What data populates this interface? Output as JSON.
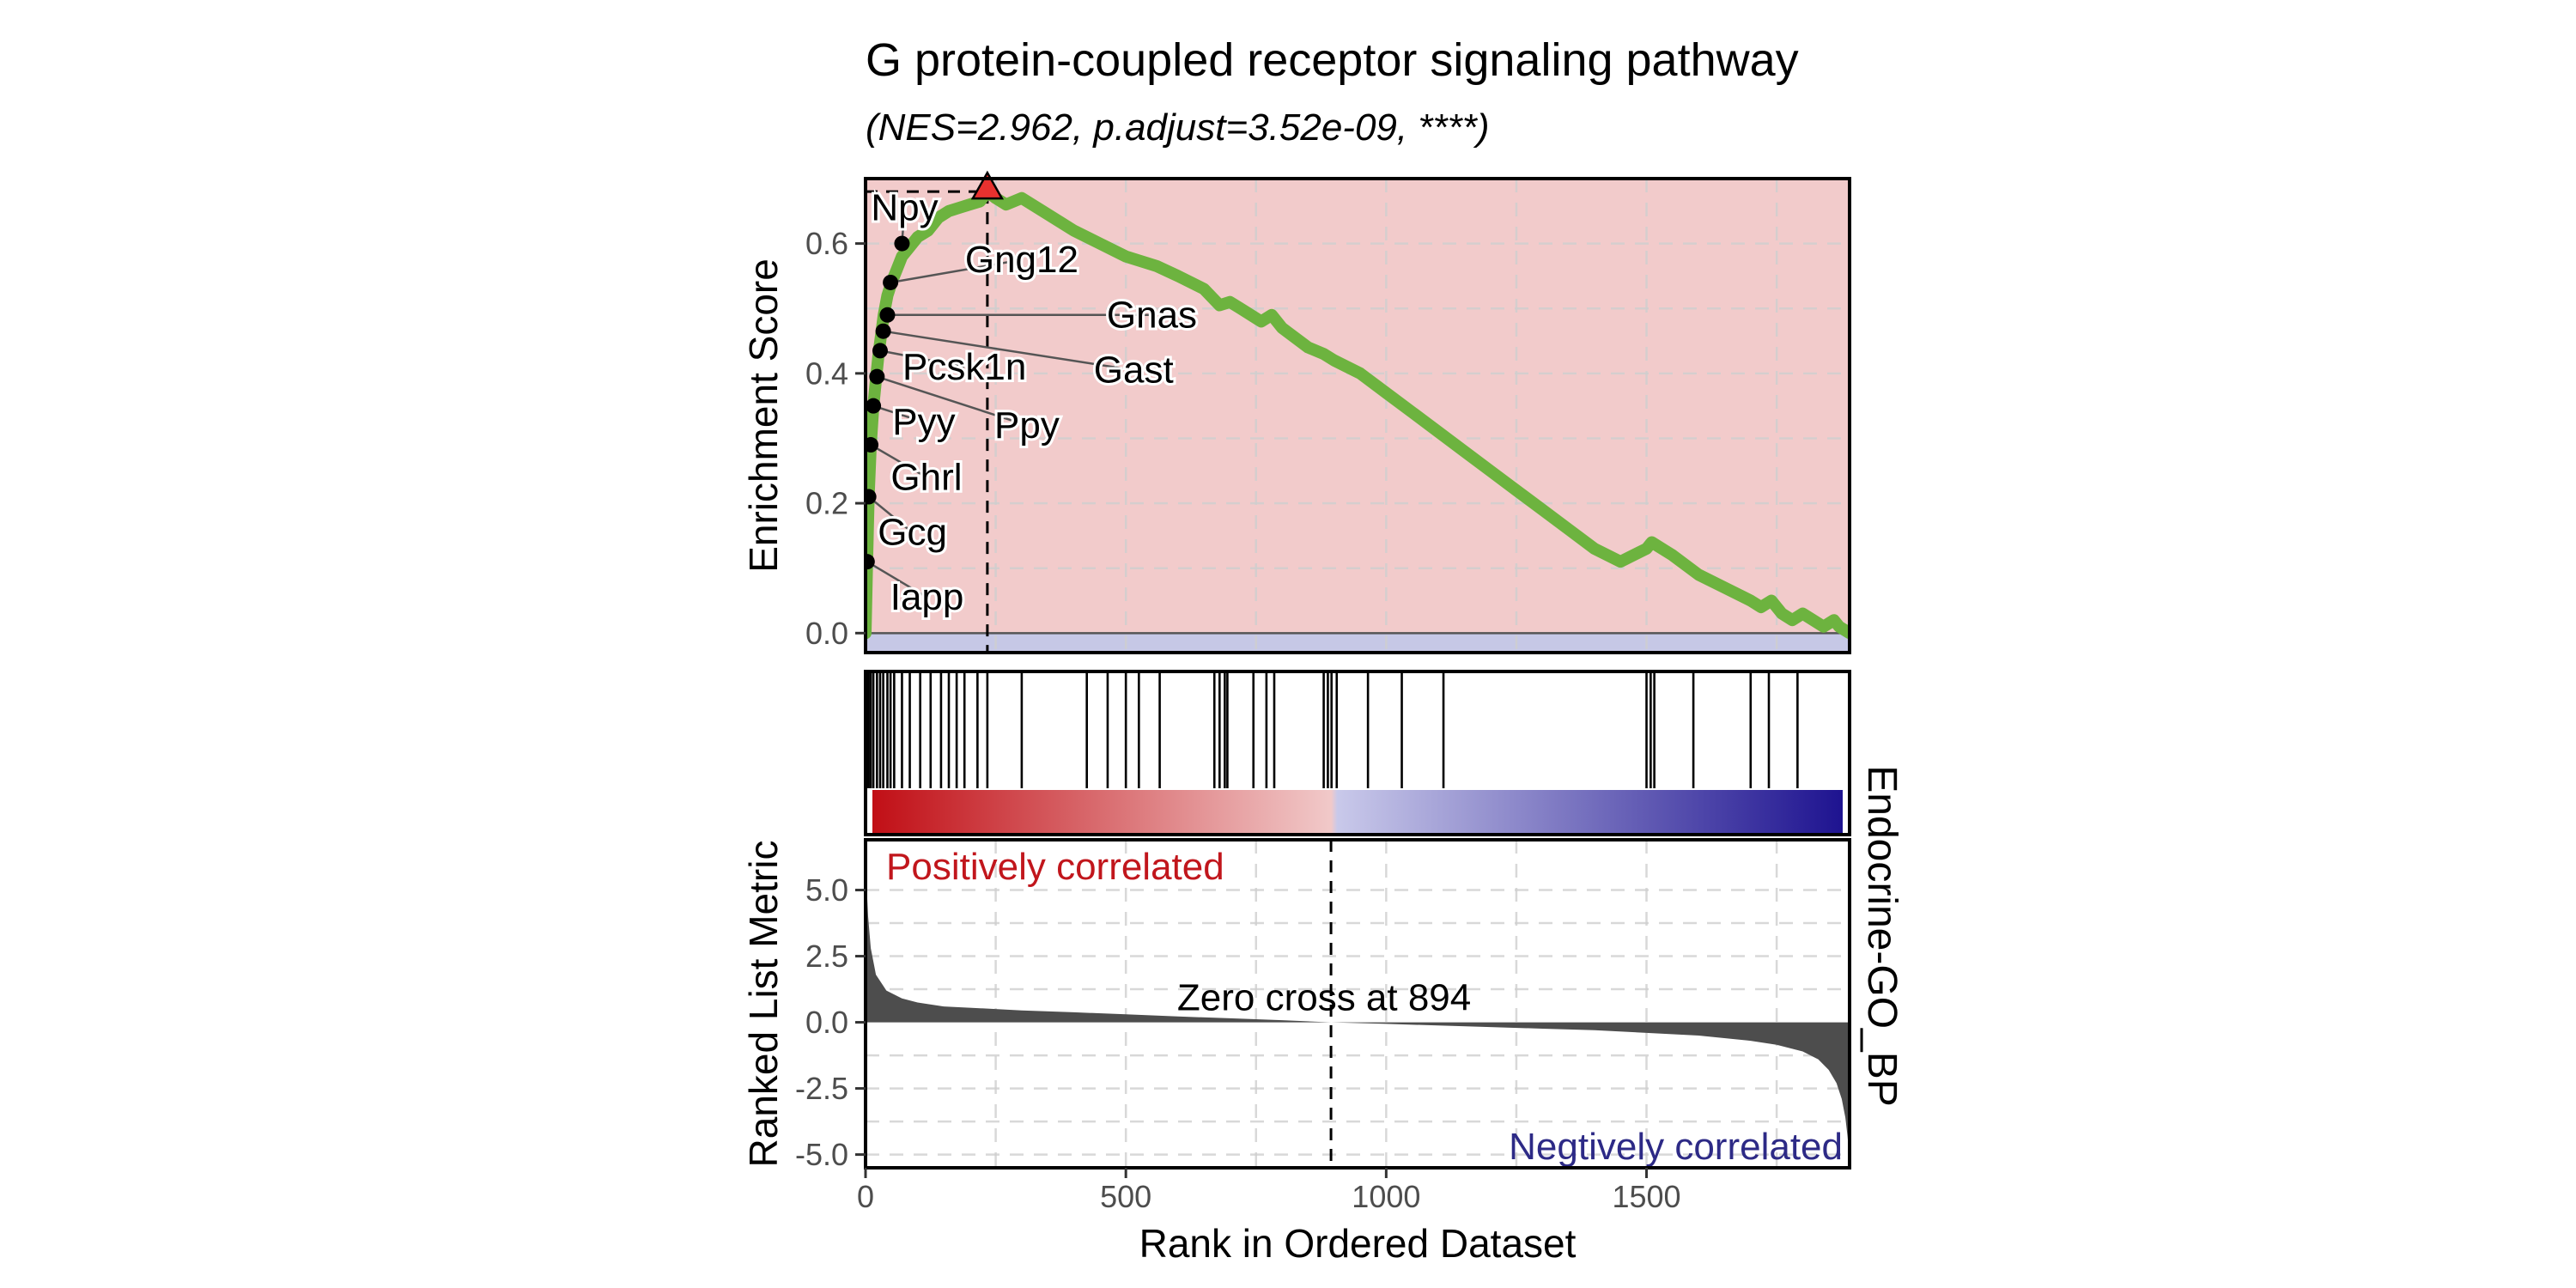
{
  "chart_data": {
    "type": "line",
    "title": "G protein-coupled receptor signaling pathway",
    "subtitle": "(NES=2.962, p.adjust=3.52e-09, ****)",
    "strip_label": "Endocrine-GO_BP",
    "xlabel": "Rank in Ordered Dataset",
    "xlim": [
      0,
      1890
    ],
    "x_ticks": [
      {
        "value": 0,
        "label": "0"
      },
      {
        "value": 500,
        "label": "500"
      },
      {
        "value": 1000,
        "label": "1000"
      },
      {
        "value": 1500,
        "label": "1500"
      }
    ],
    "enrichment": {
      "ylabel": "Enrichment Score",
      "ylim": [
        -0.03,
        0.7
      ],
      "y_ticks": [
        {
          "value": 0.0,
          "label": "0.0"
        },
        {
          "value": 0.2,
          "label": "0.2"
        },
        {
          "value": 0.4,
          "label": "0.4"
        },
        {
          "value": 0.6,
          "label": "0.6"
        }
      ],
      "positive_color": "#f2cbcb",
      "negative_color": "#c6c8e6",
      "line_color": "#6db33f",
      "series": {
        "name": "Running enrichment score",
        "x": [
          0,
          3,
          6,
          10,
          15,
          20,
          25,
          30,
          35,
          42,
          50,
          60,
          70,
          80,
          90,
          100,
          120,
          140,
          160,
          180,
          200,
          220,
          234,
          250,
          270,
          300,
          340,
          400,
          450,
          500,
          560,
          600,
          650,
          680,
          700,
          720,
          740,
          760,
          780,
          800,
          850,
          880,
          900,
          950,
          1000,
          1050,
          1100,
          1150,
          1200,
          1250,
          1300,
          1350,
          1400,
          1450,
          1500,
          1510,
          1550,
          1600,
          1650,
          1700,
          1720,
          1740,
          1760,
          1780,
          1800,
          1820,
          1840,
          1860,
          1870,
          1880,
          1890
        ],
        "values": [
          0.0,
          0.11,
          0.21,
          0.29,
          0.35,
          0.39,
          0.43,
          0.46,
          0.49,
          0.52,
          0.54,
          0.56,
          0.58,
          0.59,
          0.6,
          0.61,
          0.62,
          0.64,
          0.65,
          0.655,
          0.66,
          0.665,
          0.68,
          0.67,
          0.66,
          0.67,
          0.65,
          0.62,
          0.6,
          0.58,
          0.565,
          0.55,
          0.53,
          0.505,
          0.51,
          0.5,
          0.49,
          0.48,
          0.49,
          0.47,
          0.44,
          0.43,
          0.42,
          0.4,
          0.37,
          0.34,
          0.31,
          0.28,
          0.25,
          0.22,
          0.19,
          0.16,
          0.13,
          0.11,
          0.13,
          0.14,
          0.12,
          0.09,
          0.07,
          0.05,
          0.04,
          0.05,
          0.03,
          0.02,
          0.03,
          0.02,
          0.01,
          0.02,
          0.01,
          0.005,
          0.0
        ]
      },
      "peak": {
        "x": 234,
        "y": 0.68
      },
      "gene_points": [
        {
          "gene": "Iapp",
          "x": 3,
          "y": 0.11
        },
        {
          "gene": "Gcg",
          "x": 6,
          "y": 0.21
        },
        {
          "gene": "Ghrl",
          "x": 10,
          "y": 0.29
        },
        {
          "gene": "Pyy",
          "x": 15,
          "y": 0.35
        },
        {
          "gene": "Ppy",
          "x": 22,
          "y": 0.395
        },
        {
          "gene": "Pcsk1n",
          "x": 28,
          "y": 0.435
        },
        {
          "gene": "Gast",
          "x": 34,
          "y": 0.465
        },
        {
          "gene": "Gnas",
          "x": 42,
          "y": 0.49
        },
        {
          "gene": "Gng12",
          "x": 48,
          "y": 0.54
        },
        {
          "gene": "Npy",
          "x": 70,
          "y": 0.6
        }
      ],
      "gene_labels": [
        {
          "gene": "Npy",
          "x": 75,
          "y": 0.655
        },
        {
          "gene": "Gng12",
          "x": 300,
          "y": 0.575
        },
        {
          "gene": "Gnas",
          "x": 550,
          "y": 0.49
        },
        {
          "gene": "Pcsk1n",
          "x": 190,
          "y": 0.41
        },
        {
          "gene": "Gast",
          "x": 515,
          "y": 0.405
        },
        {
          "gene": "Pyy",
          "x": 112,
          "y": 0.325
        },
        {
          "gene": "Ppy",
          "x": 310,
          "y": 0.32
        },
        {
          "gene": "Ghrl",
          "x": 117,
          "y": 0.24
        },
        {
          "gene": "Gcg",
          "x": 90,
          "y": 0.155
        },
        {
          "gene": "Iapp",
          "x": 118,
          "y": 0.055
        }
      ]
    },
    "hits": {
      "positions": [
        3,
        6,
        10,
        15,
        22,
        28,
        34,
        42,
        48,
        55,
        70,
        85,
        105,
        125,
        145,
        160,
        175,
        190,
        215,
        234,
        300,
        425,
        465,
        500,
        525,
        565,
        670,
        680,
        690,
        695,
        745,
        770,
        785,
        880,
        888,
        895,
        905,
        965,
        1030,
        1110,
        1500,
        1508,
        1515,
        1590,
        1700,
        1735,
        1790
      ],
      "gradient_colors": [
        "#c10f16",
        "#f1c9c9",
        "#c9c9ea",
        "#1e1390"
      ],
      "zero_fraction": 0.473
    },
    "ranked": {
      "ylabel": "Ranked List Metric",
      "ylim": [
        -5.5,
        6.9
      ],
      "y_ticks": [
        {
          "value": 5.0,
          "label": "5.0"
        },
        {
          "value": 2.5,
          "label": "2.5"
        },
        {
          "value": 0.0,
          "label": "0.0"
        },
        {
          "value": -2.5,
          "label": "-2.5"
        },
        {
          "value": -5.0,
          "label": "-5.0"
        }
      ],
      "fill_color": "#4d4d4d",
      "zero_cross": 894,
      "zero_cross_label": "Zero cross at 894",
      "positive_label": "Positively correlated",
      "positive_color": "#c1161c",
      "negative_label": "Negtively correlated",
      "negative_color": "#2d2a86",
      "series": {
        "name": "Ranked list metric",
        "x": [
          0,
          2,
          5,
          10,
          20,
          40,
          70,
          100,
          150,
          200,
          300,
          400,
          500,
          600,
          700,
          800,
          894,
          1000,
          1100,
          1200,
          1300,
          1400,
          1500,
          1600,
          1700,
          1750,
          1800,
          1830,
          1850,
          1865,
          1875,
          1882,
          1886,
          1890
        ],
        "values": [
          6.5,
          5.2,
          4.0,
          2.8,
          1.8,
          1.2,
          0.9,
          0.75,
          0.6,
          0.55,
          0.45,
          0.38,
          0.3,
          0.22,
          0.15,
          0.08,
          0.0,
          -0.06,
          -0.12,
          -0.18,
          -0.24,
          -0.3,
          -0.4,
          -0.5,
          -0.7,
          -0.85,
          -1.1,
          -1.4,
          -1.8,
          -2.3,
          -2.9,
          -3.6,
          -4.3,
          -5.2
        ]
      }
    }
  }
}
